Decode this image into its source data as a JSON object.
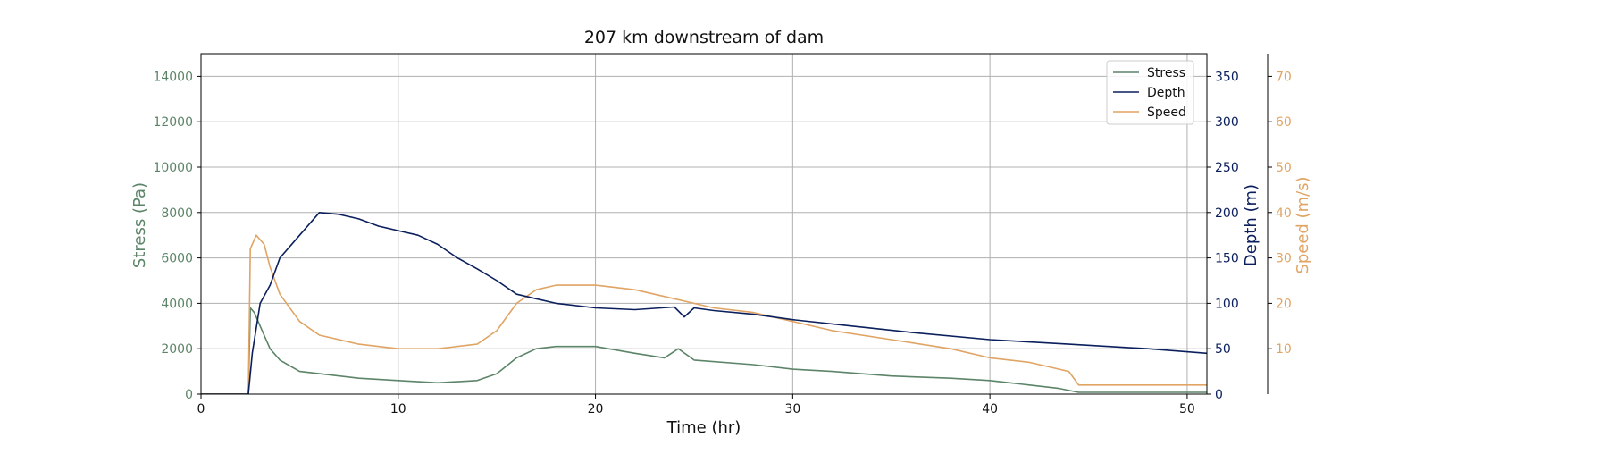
{
  "chart_data": {
    "type": "line",
    "title": "207 km downstream of dam",
    "xlabel": "Time (hr)",
    "xlim": [
      0,
      51
    ],
    "xticks": [
      0,
      10,
      20,
      30,
      40,
      50
    ],
    "grid": true,
    "legend_position": "top-right",
    "axes": {
      "stress": {
        "label": "Stress (Pa)",
        "color": "#5c8468",
        "side": "left",
        "lim": [
          0,
          15000
        ],
        "ticks": [
          0,
          2000,
          4000,
          6000,
          8000,
          10000,
          12000,
          14000
        ]
      },
      "depth": {
        "label": "Depth (m)",
        "color": "#0a1f5c",
        "side": "right",
        "lim": [
          0,
          375
        ],
        "ticks": [
          0,
          50,
          100,
          150,
          200,
          250,
          300,
          350
        ]
      },
      "speed": {
        "label": "Speed (m/s)",
        "color": "#e0a464",
        "side": "right-outer",
        "lim": [
          0,
          75
        ],
        "ticks": [
          10,
          20,
          30,
          40,
          50,
          60,
          70
        ]
      }
    },
    "series": [
      {
        "name": "Stress",
        "axis": "stress",
        "color": "#5c8468",
        "x": [
          0,
          2.4,
          2.5,
          2.7,
          3.0,
          3.5,
          4.0,
          5.0,
          6.0,
          8.0,
          10.0,
          12.0,
          14.0,
          15.0,
          16.0,
          17.0,
          18.0,
          20.0,
          22.0,
          23.5,
          24.2,
          25.0,
          28.0,
          30.0,
          32.0,
          35.0,
          38.0,
          40.0,
          42.0,
          43.5,
          44.5,
          51.0
        ],
        "y": [
          0,
          0,
          3800,
          3600,
          3000,
          2000,
          1500,
          1000,
          900,
          700,
          600,
          500,
          600,
          900,
          1600,
          2000,
          2100,
          2100,
          1800,
          1600,
          2000,
          1500,
          1300,
          1100,
          1000,
          800,
          700,
          600,
          400,
          250,
          80,
          80
        ]
      },
      {
        "name": "Depth",
        "axis": "depth",
        "color": "#0a1f5c",
        "x": [
          0,
          2.4,
          2.6,
          3.0,
          3.5,
          4.0,
          5.0,
          6.0,
          7.0,
          8.0,
          9.0,
          10.0,
          11.0,
          12.0,
          13.0,
          14.0,
          15.0,
          16.0,
          17.0,
          18.0,
          20.0,
          22.0,
          24.0,
          24.5,
          25.0,
          26.0,
          28.0,
          30.0,
          33.0,
          36.0,
          40.0,
          44.0,
          48.0,
          51.0
        ],
        "y": [
          0,
          0,
          45,
          100,
          120,
          150,
          175,
          200,
          198,
          193,
          185,
          180,
          175,
          165,
          150,
          138,
          125,
          110,
          105,
          100,
          95,
          93,
          96,
          85,
          95,
          92,
          88,
          82,
          75,
          68,
          60,
          55,
          50,
          45
        ]
      },
      {
        "name": "Speed",
        "axis": "speed",
        "color": "#e0a464",
        "x": [
          0,
          2.4,
          2.5,
          2.8,
          3.2,
          3.5,
          4.0,
          5.0,
          6.0,
          8.0,
          10.0,
          12.0,
          14.0,
          15.0,
          15.5,
          16.0,
          17.0,
          18.0,
          20.0,
          22.0,
          24.0,
          26.0,
          28.0,
          30.0,
          32.0,
          35.0,
          38.0,
          40.0,
          42.0,
          43.0,
          44.0,
          44.5,
          45.0,
          48.0,
          51.0
        ],
        "y": [
          0,
          0,
          32,
          35,
          33,
          28,
          22,
          16,
          13,
          11,
          10,
          10,
          11,
          14,
          17,
          20,
          23,
          24,
          24,
          23,
          21,
          19,
          18,
          16,
          14,
          12,
          10,
          8,
          7,
          6,
          5,
          2,
          2,
          2,
          2
        ]
      }
    ]
  }
}
